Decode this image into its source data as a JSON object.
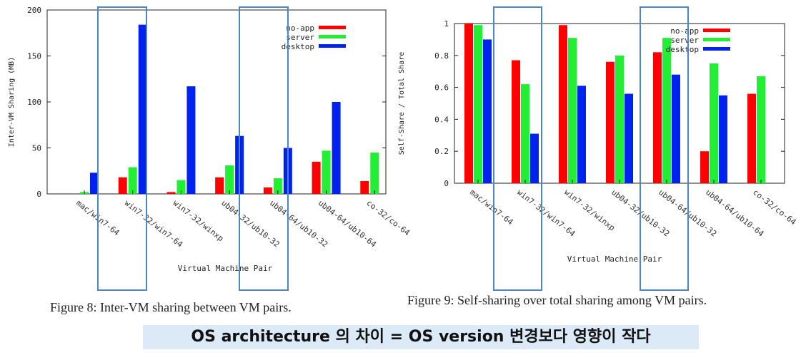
{
  "banner": "OS architecture 의 차이 = OS version 변경보다 영향이 작다",
  "colors": {
    "no-app": "#ff0000",
    "server": "#22ee33",
    "desktop": "#0022ee",
    "highlight": "#4a86c8"
  },
  "chart_data": [
    {
      "type": "bar",
      "caption": "Figure 8: Inter-VM sharing between VM pairs.",
      "xlabel": "Virtual Machine Pair",
      "ylabel": "Inter-VM Sharing (MB)",
      "ylim": [
        0,
        200
      ],
      "yticks": [
        "0",
        "50",
        "100",
        "150",
        "200"
      ],
      "categories": [
        "mac/win7-64",
        "win7-32/win7-64",
        "win7-32/winxp",
        "ub04-32/ub10-32",
        "ub04-64/ub10-32",
        "ub04-64/ub10-64",
        "co-32/co-64"
      ],
      "series": [
        {
          "name": "no-app",
          "values": [
            0,
            18,
            2,
            18,
            7,
            35,
            14
          ]
        },
        {
          "name": "server",
          "values": [
            2,
            29,
            15,
            31,
            17,
            47,
            45
          ]
        },
        {
          "name": "desktop",
          "values": [
            23,
            184,
            117,
            63,
            50,
            100,
            0
          ]
        }
      ],
      "legend": "top-right",
      "highlighted": [
        "win7-32/win7-64",
        "ub04-64/ub10-32"
      ]
    },
    {
      "type": "bar",
      "caption": "Figure 9: Self-sharing over total sharing among VM pairs.",
      "xlabel": "Virtual Machine Pair",
      "ylabel": "Self-Share / Total Share",
      "ylim": [
        0,
        1
      ],
      "yticks": [
        "0",
        "0.2",
        "0.4",
        "0.6",
        "0.8",
        "1"
      ],
      "categories": [
        "mac/win7-64",
        "win7-32/win7-64",
        "win7-32/winxp",
        "ub04-32/ub10-32",
        "ub04-64/ub10-32",
        "ub04-64/ub10-64",
        "co-32/co-64"
      ],
      "series": [
        {
          "name": "no-app",
          "values": [
            1.0,
            0.77,
            0.99,
            0.76,
            0.82,
            0.2,
            0.56
          ]
        },
        {
          "name": "server",
          "values": [
            0.99,
            0.62,
            0.91,
            0.8,
            0.91,
            0.75,
            0.67
          ]
        },
        {
          "name": "desktop",
          "values": [
            0.9,
            0.31,
            0.61,
            0.56,
            0.68,
            0.55,
            0
          ]
        }
      ],
      "legend": "top-right",
      "highlighted": [
        "win7-32/win7-64",
        "ub04-64/ub10-32"
      ]
    }
  ]
}
